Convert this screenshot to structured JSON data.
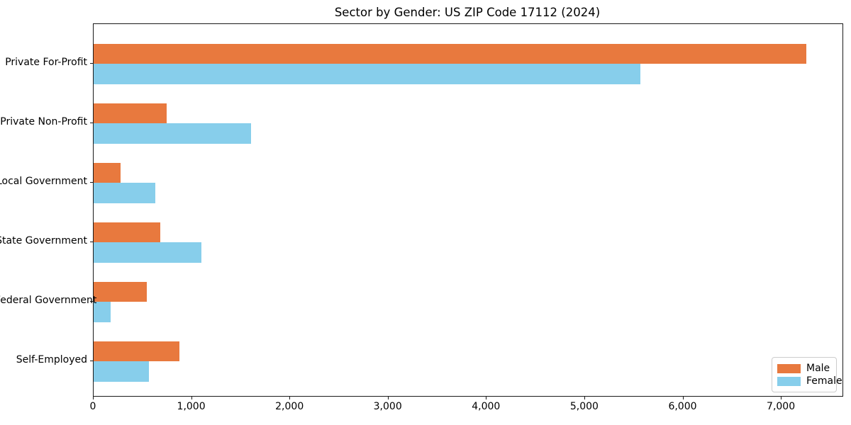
{
  "title": "Sector by Gender: US ZIP Code 17112 (2024)",
  "chart_data": {
    "type": "bar",
    "orientation": "horizontal",
    "title": "Sector by Gender: US ZIP Code 17112 (2024)",
    "xlabel": "",
    "ylabel": "",
    "categories": [
      "Private For-Profit",
      "Private Non-Profit",
      "Local Government",
      "State Government",
      "Federal Government",
      "Self-Employed"
    ],
    "series": [
      {
        "name": "Male",
        "color": "#e8793e",
        "values": [
          7250,
          745,
          275,
          675,
          540,
          870
        ]
      },
      {
        "name": "Female",
        "color": "#87ceeb",
        "values": [
          5560,
          1600,
          630,
          1095,
          170,
          565
        ]
      }
    ],
    "xlim": [
      0,
      7620
    ],
    "xticks": [
      0,
      1000,
      2000,
      3000,
      4000,
      5000,
      6000,
      7000
    ],
    "xtick_labels": [
      "0",
      "1,000",
      "2,000",
      "3,000",
      "4,000",
      "5,000",
      "6,000",
      "7,000"
    ],
    "grid": false,
    "legend": {
      "position": "lower right",
      "entries": [
        "Male",
        "Female"
      ]
    }
  }
}
